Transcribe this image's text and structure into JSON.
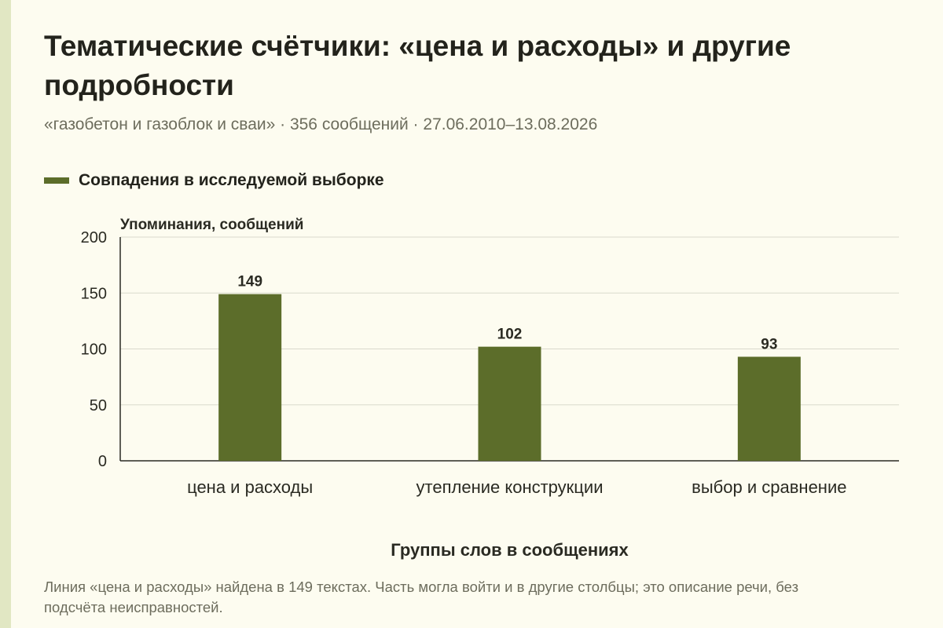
{
  "title": "Тематические счётчики: «цена и расходы» и другие подробности",
  "subtitle": "«газобетон и газоблок и сваи» · 356 сообщений · 27.06.2010–13.08.2026",
  "legend": {
    "label": "Совпадения в исследуемой выборке",
    "color": "#5c6d2a"
  },
  "footnote": "Линия «цена и расходы» найдена в 149 текстах. Часть могла войти и в другие столбцы; это описание речи, без подсчёта неисправностей.",
  "colors": {
    "bar": "#5c6d2a",
    "grid": "#d9d9cc",
    "axis": "#2a2a22",
    "accent": "#e1e7c3",
    "background": "#fdfcf0"
  },
  "chart_data": {
    "type": "bar",
    "categories": [
      "цена и расходы",
      "утепление конструкции",
      "выбор и сравнение"
    ],
    "series": [
      {
        "name": "Совпадения в исследуемой выборке",
        "values": [
          149,
          102,
          93
        ]
      }
    ],
    "ylabel": "Упоминания, сообщений",
    "xlabel": "Группы слов в сообщениях",
    "ylim": [
      0,
      200
    ],
    "yticks": [
      0,
      50,
      100,
      150,
      200
    ],
    "data_labels": [
      "149",
      "102",
      "93"
    ],
    "grid": true,
    "legend_position": "top-left"
  }
}
